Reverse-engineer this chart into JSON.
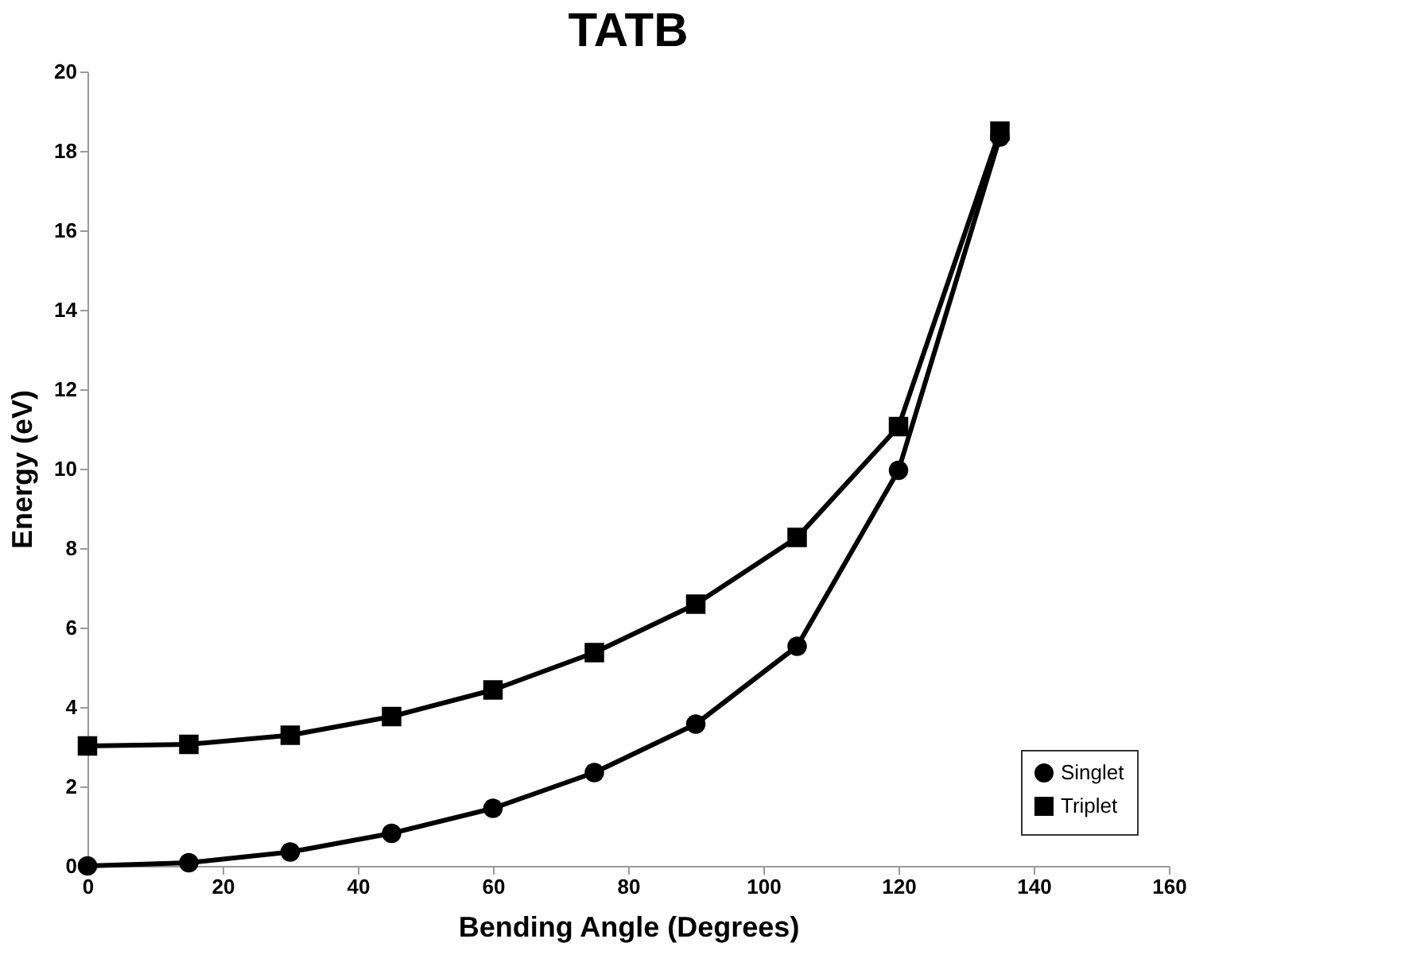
{
  "chart_data": {
    "type": "line",
    "title": "TATB",
    "xlabel": "Bending Angle (Degrees)",
    "ylabel": "Energy (eV)",
    "x": [
      0,
      15,
      30,
      45,
      60,
      75,
      90,
      105,
      120,
      135
    ],
    "series": [
      {
        "name": "Singlet",
        "color": "#000000",
        "marker": "circle",
        "values": [
          0.0,
          0.08,
          0.35,
          0.82,
          1.45,
          2.35,
          3.57,
          5.53,
          9.96,
          18.35
        ]
      },
      {
        "name": "Triplet",
        "color": "#000000",
        "marker": "square",
        "values": [
          3.02,
          3.06,
          3.29,
          3.76,
          4.43,
          5.37,
          6.59,
          8.27,
          11.06,
          18.5
        ]
      }
    ],
    "xlim": [
      0,
      160
    ],
    "xticks": [
      0,
      20,
      40,
      60,
      80,
      100,
      120,
      140,
      160
    ],
    "ylim": [
      0,
      20
    ],
    "yticks": [
      0,
      2,
      4,
      6,
      8,
      10,
      12,
      14,
      16,
      18,
      20
    ],
    "grid": false,
    "legend": "bottom right",
    "line_style": "solid"
  }
}
